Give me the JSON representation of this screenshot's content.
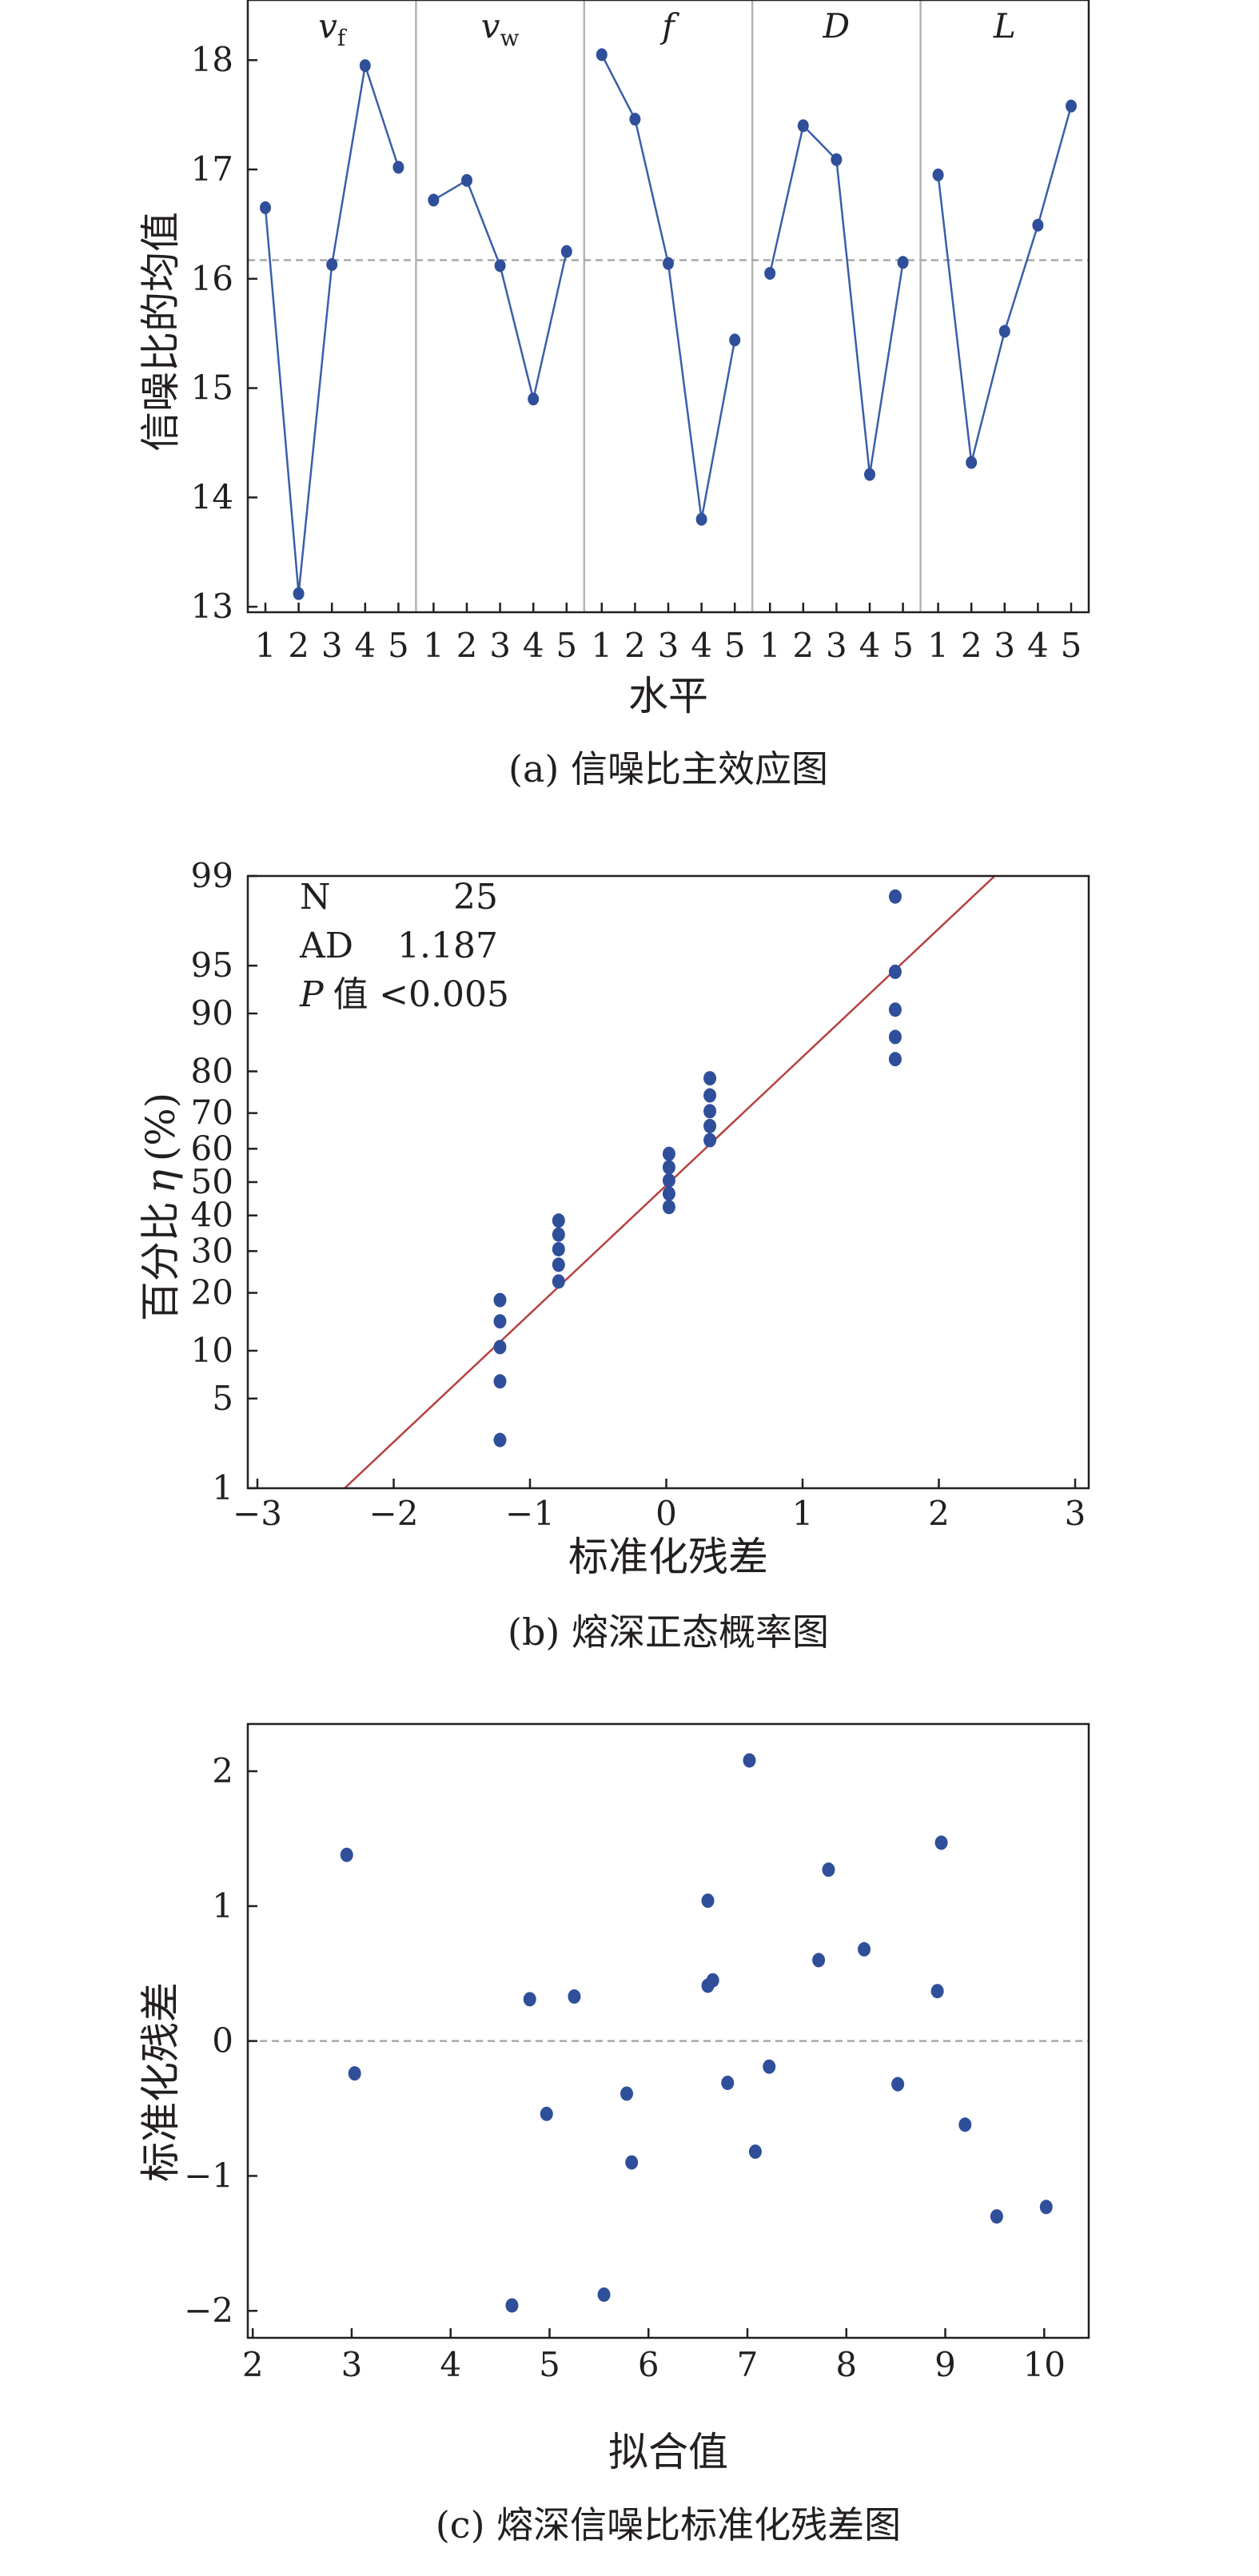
{
  "chart_data": [
    {
      "type": "line",
      "caption": "(a) 信噪比主效应图",
      "ylabel": "信噪比的均值",
      "xlabel": "水平",
      "ylim": [
        12.95,
        18.55
      ],
      "yticks": [
        13,
        14,
        15,
        16,
        17,
        18
      ],
      "reference_line": 16.17,
      "groups": [
        {
          "label_main": "v",
          "label_sub": "f",
          "italic": true,
          "levels": [
            "1",
            "2",
            "3",
            "4",
            "5"
          ],
          "values": [
            16.65,
            13.12,
            16.13,
            17.95,
            17.02
          ]
        },
        {
          "label_main": "v",
          "label_sub": "w",
          "italic": true,
          "levels": [
            "1",
            "2",
            "3",
            "4",
            "5"
          ],
          "values": [
            16.72,
            16.9,
            16.12,
            14.9,
            16.25
          ]
        },
        {
          "label_main": "f",
          "label_sub": "",
          "italic": true,
          "levels": [
            "1",
            "2",
            "3",
            "4",
            "5"
          ],
          "values": [
            18.05,
            17.46,
            16.14,
            13.8,
            15.44
          ]
        },
        {
          "label_main": "D",
          "label_sub": "",
          "italic": true,
          "levels": [
            "1",
            "2",
            "3",
            "4",
            "5"
          ],
          "values": [
            16.05,
            17.4,
            17.09,
            14.21,
            16.15
          ]
        },
        {
          "label_main": "L",
          "label_sub": "",
          "italic": true,
          "levels": [
            "1",
            "2",
            "3",
            "4",
            "5"
          ],
          "values": [
            16.95,
            14.32,
            15.52,
            16.49,
            17.58
          ]
        }
      ],
      "colors": {
        "line": "#3b5ea8",
        "marker": "#2f4f9a",
        "reference": "#a8a8a8",
        "separator": "#b4b4b4"
      }
    },
    {
      "type": "scatter",
      "subtype": "normal-probability",
      "caption": "(b) 熔深正态概率图",
      "ylabel_main": "百分比",
      "ylabel_symbol": "η",
      "ylabel_unit": "(%)",
      "xlabel": "标准化残差",
      "xlim": [
        -3,
        3
      ],
      "xticks": [
        -3,
        -2,
        -1,
        0,
        1,
        2,
        3
      ],
      "xtick_labels": [
        "−3",
        "−2",
        "−1",
        "0",
        "1",
        "2",
        "3"
      ],
      "yscale": "normal-probability",
      "yticks": [
        1,
        5,
        10,
        20,
        30,
        40,
        50,
        60,
        70,
        80,
        90,
        95,
        99
      ],
      "stats": {
        "n_label": "N",
        "n_value": "25",
        "ad_label": "AD",
        "ad_value": "1.187",
        "p_label": "P",
        "p_label_suffix": "值",
        "p_value": "<0.005"
      },
      "fit_line": {
        "x": [
          -2.36,
          2.41
        ],
        "y": [
          1,
          99
        ]
      },
      "points": [
        {
          "x": -1.22,
          "y": 2.5
        },
        {
          "x": -1.22,
          "y": 6.5
        },
        {
          "x": -1.22,
          "y": 10.5
        },
        {
          "x": -1.22,
          "y": 14.5
        },
        {
          "x": -1.22,
          "y": 18.5
        },
        {
          "x": -0.79,
          "y": 22.5
        },
        {
          "x": -0.79,
          "y": 26.5
        },
        {
          "x": -0.79,
          "y": 30.5
        },
        {
          "x": -0.79,
          "y": 34.5
        },
        {
          "x": -0.79,
          "y": 38.5
        },
        {
          "x": 0.02,
          "y": 42.5
        },
        {
          "x": 0.02,
          "y": 46.5
        },
        {
          "x": 0.02,
          "y": 50.5
        },
        {
          "x": 0.02,
          "y": 54.5
        },
        {
          "x": 0.02,
          "y": 58.5
        },
        {
          "x": 0.32,
          "y": 62.5
        },
        {
          "x": 0.32,
          "y": 66.5
        },
        {
          "x": 0.32,
          "y": 70.5
        },
        {
          "x": 0.32,
          "y": 74.5
        },
        {
          "x": 0.32,
          "y": 78.5
        },
        {
          "x": 1.68,
          "y": 82.5
        },
        {
          "x": 1.68,
          "y": 86.5
        },
        {
          "x": 1.68,
          "y": 90.5
        },
        {
          "x": 1.68,
          "y": 94.5
        },
        {
          "x": 1.68,
          "y": 98.5
        }
      ],
      "colors": {
        "marker": "#2f4f9a",
        "fit": "#b5413f"
      }
    },
    {
      "type": "scatter",
      "caption": "(c) 熔深信噪比标准化残差图",
      "ylabel": "标准化残差",
      "xlabel": "拟合值",
      "xlim": [
        1.95,
        10.45
      ],
      "ylim": [
        -2.2,
        2.35
      ],
      "xticks": [
        2,
        3,
        4,
        5,
        6,
        7,
        8,
        9,
        10
      ],
      "yticks": [
        -2,
        -1,
        0,
        1,
        2
      ],
      "ytick_labels": [
        "−2",
        "−1",
        "0",
        "1",
        "2"
      ],
      "reference_line": 0,
      "points": [
        {
          "x": 2.95,
          "y": 1.38
        },
        {
          "x": 3.03,
          "y": -0.24
        },
        {
          "x": 4.62,
          "y": -1.96
        },
        {
          "x": 4.8,
          "y": 0.31
        },
        {
          "x": 4.97,
          "y": -0.54
        },
        {
          "x": 5.25,
          "y": 0.33
        },
        {
          "x": 5.55,
          "y": -1.88
        },
        {
          "x": 5.78,
          "y": -0.39
        },
        {
          "x": 5.83,
          "y": -0.9
        },
        {
          "x": 6.6,
          "y": 1.04
        },
        {
          "x": 6.6,
          "y": 0.41
        },
        {
          "x": 6.65,
          "y": 0.45
        },
        {
          "x": 6.8,
          "y": -0.31
        },
        {
          "x": 7.02,
          "y": 2.08
        },
        {
          "x": 7.08,
          "y": -0.82
        },
        {
          "x": 7.22,
          "y": -0.19
        },
        {
          "x": 7.72,
          "y": 0.6
        },
        {
          "x": 7.82,
          "y": 1.27
        },
        {
          "x": 8.18,
          "y": 0.68
        },
        {
          "x": 8.52,
          "y": -0.32
        },
        {
          "x": 8.92,
          "y": 0.37
        },
        {
          "x": 8.96,
          "y": 1.47
        },
        {
          "x": 9.2,
          "y": -0.62
        },
        {
          "x": 9.52,
          "y": -1.3
        },
        {
          "x": 10.02,
          "y": -1.23
        }
      ],
      "colors": {
        "marker": "#2f4f9a",
        "reference": "#a8a8a8"
      }
    }
  ]
}
